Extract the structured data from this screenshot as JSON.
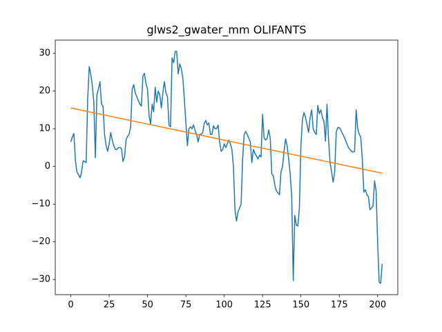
{
  "chart_data": {
    "type": "line",
    "title": "glws2_gwater_mm OLIFANTS",
    "x": [
      0,
      1,
      2,
      3,
      4,
      5,
      6,
      7,
      8,
      9,
      10,
      11,
      12,
      13,
      14,
      15,
      16,
      17,
      18,
      19,
      20,
      21,
      22,
      23,
      24,
      25,
      26,
      27,
      28,
      29,
      30,
      31,
      32,
      33,
      34,
      35,
      36,
      37,
      38,
      39,
      40,
      41,
      42,
      43,
      44,
      45,
      46,
      47,
      48,
      49,
      50,
      51,
      52,
      53,
      54,
      55,
      56,
      57,
      58,
      59,
      60,
      61,
      62,
      63,
      64,
      65,
      66,
      67,
      68,
      69,
      70,
      71,
      72,
      73,
      74,
      75,
      76,
      77,
      78,
      79,
      80,
      81,
      82,
      83,
      84,
      85,
      86,
      87,
      88,
      89,
      90,
      91,
      92,
      93,
      94,
      95,
      96,
      97,
      98,
      99,
      100,
      101,
      102,
      103,
      104,
      105,
      106,
      107,
      108,
      109,
      110,
      111,
      112,
      113,
      114,
      115,
      116,
      117,
      118,
      119,
      120,
      121,
      122,
      123,
      124,
      125,
      126,
      127,
      128,
      129,
      130,
      131,
      132,
      133,
      134,
      135,
      136,
      137,
      138,
      139,
      140,
      141,
      142,
      143,
      144,
      145,
      146,
      147,
      148,
      149,
      150,
      151,
      152,
      153,
      154,
      155,
      156,
      157,
      158,
      159,
      160,
      161,
      162,
      163,
      164,
      165,
      166,
      167,
      168,
      169,
      170,
      171,
      172,
      173,
      174,
      175,
      176,
      177,
      178,
      179,
      180,
      181,
      182,
      183,
      184,
      185,
      186,
      187,
      188,
      189,
      190,
      191,
      192,
      193,
      194,
      195,
      196,
      197,
      198,
      199,
      200,
      201,
      202,
      203
    ],
    "series": [
      {
        "color": "#1f77b4",
        "values": [
          6.5,
          7.8,
          8.7,
          1.5,
          -1.5,
          -2.2,
          -3.0,
          -1.5,
          1.5,
          1.3,
          1.0,
          18,
          26.5,
          24.5,
          21.5,
          17,
          2.3,
          19,
          20.5,
          22.5,
          16.5,
          16,
          8.5,
          5.5,
          4,
          6,
          9,
          7,
          5.5,
          4.5,
          4.5,
          5,
          5,
          4.8,
          1.3,
          2.5,
          7,
          8,
          8.5,
          10.5,
          20.5,
          21.7,
          19.5,
          18.5,
          17.5,
          16.5,
          16,
          24,
          24.7,
          22,
          20.5,
          13.5,
          11.2,
          16.5,
          14.5,
          21,
          17,
          20,
          19,
          15.5,
          19.5,
          22.5,
          19.5,
          18.5,
          11,
          10.5,
          28.8,
          27.5,
          30.5,
          30.5,
          24.5,
          27.2,
          26,
          23.5,
          18,
          11.5,
          5.5,
          10,
          10.5,
          10,
          11,
          9.5,
          8.5,
          6.5,
          8.5,
          8.5,
          9,
          11.5,
          12.2,
          11,
          11.5,
          8.5,
          8.5,
          10.8,
          10,
          10,
          11,
          6.5,
          4,
          4.5,
          6,
          5,
          6,
          7,
          6,
          4.5,
          0,
          -11.5,
          -14.5,
          -12,
          -11,
          -10,
          2,
          8.5,
          9.3,
          8.5,
          7.5,
          6.5,
          1,
          4.5,
          3.5,
          2.8,
          2,
          3,
          2.5,
          13.8,
          7.5,
          7,
          7.5,
          9.7,
          7.5,
          -2,
          -2.5,
          -5,
          -6.5,
          -7,
          -7.5,
          -1.5,
          0,
          4,
          7.3,
          5.5,
          2,
          -2,
          -8,
          -30.3,
          -13,
          -15.5,
          -15.8,
          -11,
          5.5,
          12.5,
          14.3,
          13,
          11,
          9,
          13,
          15,
          10,
          9,
          8.5,
          16.2,
          14,
          15,
          13,
          12,
          6.7,
          16.5,
          7,
          1,
          -1.5,
          -4.2,
          -1.5,
          9,
          10.3,
          10.3,
          9.7,
          8.8,
          8,
          7,
          6,
          5,
          4.5,
          4,
          3.8,
          4,
          15,
          10,
          8.5,
          7.8,
          2,
          -6.8,
          -6.2,
          -7.5,
          -8,
          -11.5,
          -11,
          -10.5,
          -3.8,
          -6.5,
          -20,
          -30.7,
          -31,
          -25.8
        ]
      },
      {
        "color": "#ff7f0e",
        "x": [
          0,
          203
        ],
        "values": [
          15.5,
          -1.8
        ]
      }
    ],
    "xlim": [
      -10.15,
      213.15
    ],
    "xticks": [
      0,
      25,
      50,
      75,
      100,
      125,
      150,
      175,
      200
    ],
    "ylim": [
      -34.0,
      33.5
    ],
    "yticks": [
      {
        "value": -30,
        "label": "−30"
      },
      {
        "value": -20,
        "label": "−20"
      },
      {
        "value": -10,
        "label": "−10"
      },
      0,
      10,
      20,
      30
    ]
  }
}
